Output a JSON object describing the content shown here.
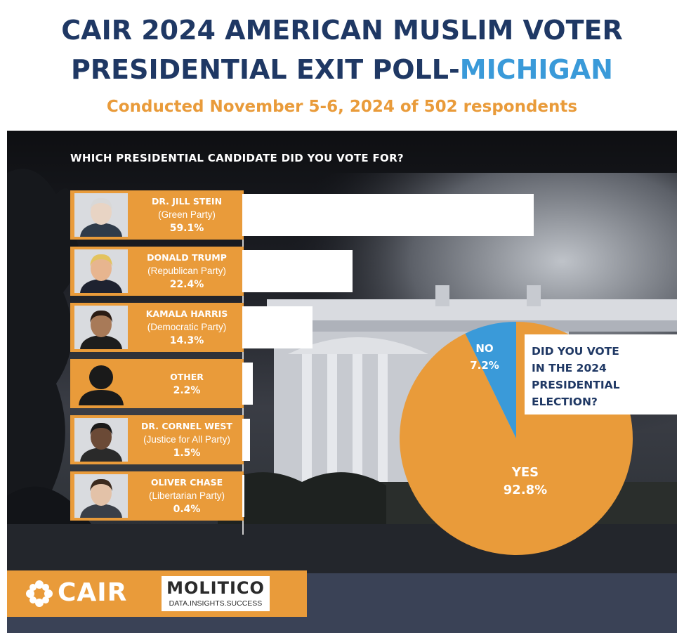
{
  "header": {
    "title_line1": "CAIR 2024 AMERICAN MUSLIM VOTER",
    "title_line2_main": "PRESIDENTIAL EXIT POLL-",
    "title_line2_highlight": "MICHIGAN",
    "subtitle": "Conducted November 5-6, 2024 of 502 respondents"
  },
  "colors": {
    "navy": "#1f3864",
    "blue": "#3a9ad9",
    "orange": "#e99b3a",
    "white": "#ffffff"
  },
  "chart_data": [
    {
      "type": "bar",
      "orientation": "horizontal",
      "title": "WHICH PRESIDENTIAL CANDIDATE DID YOU VOTE FOR?",
      "unit": "%",
      "categories": [
        {
          "name": "DR. JILL STEIN",
          "party": "(Green Party)",
          "label": "59.1%",
          "photo": "jill-stein-photo"
        },
        {
          "name": "DONALD TRUMP",
          "party": "(Republican  Party)",
          "label": "22.4%",
          "photo": "donald-trump-photo"
        },
        {
          "name": "KAMALA HARRIS",
          "party": "(Democratic  Party)",
          "label": "14.3%",
          "photo": "kamala-harris-photo"
        },
        {
          "name": "OTHER",
          "party": "",
          "label": "2.2%",
          "photo": "person-silhouette-icon"
        },
        {
          "name": "DR. CORNEL WEST",
          "party": "(Justice for All Party)",
          "label": "1.5%",
          "photo": "cornel-west-photo"
        },
        {
          "name": "OLIVER CHASE",
          "party": "(Libertarian Party)",
          "label": "0.4%",
          "photo": "oliver-chase-photo"
        }
      ],
      "values": [
        59.1,
        22.4,
        14.3,
        2.2,
        1.5,
        0.4
      ],
      "xlim": [
        0,
        100
      ]
    },
    {
      "type": "pie",
      "title": "DID YOU VOTE IN THE 2024 PRESIDENTIAL ELECTION?",
      "slices": [
        {
          "label": "YES",
          "value": 92.8,
          "display": "92.8%",
          "color": "#e99b3a"
        },
        {
          "label": "NO",
          "value": 7.2,
          "display": "7.2%",
          "color": "#3a9ad9"
        }
      ]
    }
  ],
  "pie_question_lines": [
    "DID YOU VOTE",
    "IN THE 2024",
    "PRESIDENTIAL",
    "ELECTION?"
  ],
  "footer": {
    "cair_logo_text": "CAIR",
    "molitico_name": "MOLITICO",
    "molitico_tagline": "DATA.INSIGHTS.SUCCESS"
  }
}
